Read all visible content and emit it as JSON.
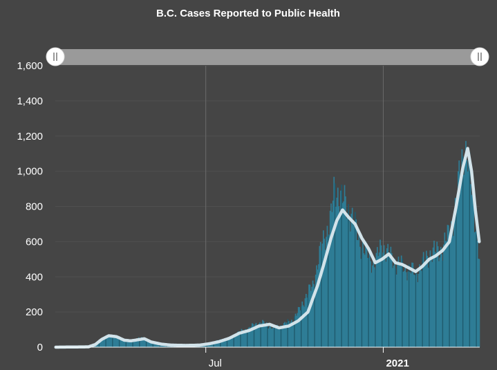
{
  "chart_data": {
    "type": "bar",
    "title": "B.C. Cases Reported to Public Health",
    "xlabel": "",
    "ylabel": "",
    "ylim": [
      0,
      1600
    ],
    "yticks": [
      0,
      200,
      400,
      600,
      800,
      1000,
      1200,
      1400,
      1600
    ],
    "ytick_labels": [
      "0",
      "200",
      "400",
      "600",
      "800",
      "1,000",
      "1,200",
      "1,400",
      "1,600"
    ],
    "x_range": [
      "2020-01-27",
      "2021-04-11"
    ],
    "xticks": [
      {
        "date": "2020-07-01",
        "label": "Jul",
        "bold": false
      },
      {
        "date": "2021-01-01",
        "label": "2021",
        "bold": true
      }
    ],
    "grid": true,
    "legend": "none",
    "navigator": {
      "start": "2020-01-27",
      "end": "2021-04-11"
    },
    "colors": {
      "bars": "#2e7d96",
      "bars_dark": "#1f5a6d",
      "moving_average": "#d2e3ea",
      "background": "#454545",
      "navigator": "#9a9a9a"
    },
    "series": [
      {
        "type": "bar",
        "points": [
          [
            "2020-01-27",
            0
          ],
          [
            "2020-02-10",
            1
          ],
          [
            "2020-02-24",
            2
          ],
          [
            "2020-03-05",
            10
          ],
          [
            "2020-03-12",
            30
          ],
          [
            "2020-03-17",
            55
          ],
          [
            "2020-03-22",
            70
          ],
          [
            "2020-03-27",
            62
          ],
          [
            "2020-04-03",
            45
          ],
          [
            "2020-04-10",
            35
          ],
          [
            "2020-04-18",
            40
          ],
          [
            "2020-04-25",
            55
          ],
          [
            "2020-04-30",
            45
          ],
          [
            "2020-05-07",
            25
          ],
          [
            "2020-05-15",
            15
          ],
          [
            "2020-05-25",
            10
          ],
          [
            "2020-06-05",
            10
          ],
          [
            "2020-06-20",
            12
          ],
          [
            "2020-07-05",
            25
          ],
          [
            "2020-07-15",
            40
          ],
          [
            "2020-07-25",
            45
          ],
          [
            "2020-08-01",
            80
          ],
          [
            "2020-08-10",
            95
          ],
          [
            "2020-08-20",
            125
          ],
          [
            "2020-08-28",
            140
          ],
          [
            "2020-09-05",
            120
          ],
          [
            "2020-09-12",
            110
          ],
          [
            "2020-09-20",
            130
          ],
          [
            "2020-09-28",
            150
          ],
          [
            "2020-10-05",
            200
          ],
          [
            "2020-10-12",
            280
          ],
          [
            "2020-10-20",
            350
          ],
          [
            "2020-10-26",
            500
          ],
          [
            "2020-11-01",
            620
          ],
          [
            "2020-11-08",
            740
          ],
          [
            "2020-11-12",
            900
          ],
          [
            "2020-11-18",
            860
          ],
          [
            "2020-11-23",
            800
          ],
          [
            "2020-11-29",
            760
          ],
          [
            "2020-12-06",
            620
          ],
          [
            "2020-12-12",
            560
          ],
          [
            "2020-12-18",
            500
          ],
          [
            "2020-12-24",
            480
          ],
          [
            "2020-12-31",
            580
          ],
          [
            "2021-01-07",
            520
          ],
          [
            "2021-01-14",
            480
          ],
          [
            "2021-01-21",
            460
          ],
          [
            "2021-01-28",
            440
          ],
          [
            "2021-02-04",
            420
          ],
          [
            "2021-02-11",
            470
          ],
          [
            "2021-02-18",
            530
          ],
          [
            "2021-02-25",
            540
          ],
          [
            "2021-03-04",
            560
          ],
          [
            "2021-03-11",
            650
          ],
          [
            "2021-03-18",
            800
          ],
          [
            "2021-03-22",
            1000
          ],
          [
            "2021-03-26",
            1150
          ],
          [
            "2021-03-30",
            1050
          ],
          [
            "2021-04-03",
            900
          ],
          [
            "2021-04-06",
            760
          ],
          [
            "2021-04-09",
            620
          ],
          [
            "2021-04-11",
            470
          ]
        ]
      },
      {
        "type": "line",
        "points": [
          [
            "2020-01-27",
            0
          ],
          [
            "2020-03-01",
            2
          ],
          [
            "2020-03-08",
            15
          ],
          [
            "2020-03-15",
            45
          ],
          [
            "2020-03-22",
            65
          ],
          [
            "2020-03-30",
            60
          ],
          [
            "2020-04-07",
            40
          ],
          [
            "2020-04-14",
            36
          ],
          [
            "2020-04-21",
            42
          ],
          [
            "2020-04-28",
            48
          ],
          [
            "2020-05-05",
            30
          ],
          [
            "2020-05-15",
            18
          ],
          [
            "2020-05-25",
            12
          ],
          [
            "2020-06-10",
            10
          ],
          [
            "2020-06-25",
            12
          ],
          [
            "2020-07-05",
            20
          ],
          [
            "2020-07-15",
            32
          ],
          [
            "2020-07-25",
            50
          ],
          [
            "2020-08-05",
            80
          ],
          [
            "2020-08-15",
            95
          ],
          [
            "2020-08-25",
            120
          ],
          [
            "2020-09-05",
            130
          ],
          [
            "2020-09-15",
            110
          ],
          [
            "2020-09-25",
            120
          ],
          [
            "2020-10-05",
            150
          ],
          [
            "2020-10-15",
            200
          ],
          [
            "2020-10-25",
            350
          ],
          [
            "2020-11-02",
            500
          ],
          [
            "2020-11-08",
            620
          ],
          [
            "2020-11-14",
            720
          ],
          [
            "2020-11-20",
            780
          ],
          [
            "2020-11-26",
            740
          ],
          [
            "2020-12-03",
            700
          ],
          [
            "2020-12-10",
            620
          ],
          [
            "2020-12-17",
            560
          ],
          [
            "2020-12-24",
            480
          ],
          [
            "2020-12-31",
            500
          ],
          [
            "2021-01-07",
            530
          ],
          [
            "2021-01-14",
            480
          ],
          [
            "2021-01-21",
            470
          ],
          [
            "2021-01-28",
            450
          ],
          [
            "2021-02-04",
            430
          ],
          [
            "2021-02-11",
            460
          ],
          [
            "2021-02-18",
            500
          ],
          [
            "2021-02-25",
            520
          ],
          [
            "2021-03-04",
            550
          ],
          [
            "2021-03-11",
            600
          ],
          [
            "2021-03-18",
            800
          ],
          [
            "2021-03-25",
            1020
          ],
          [
            "2021-03-30",
            1130
          ],
          [
            "2021-04-03",
            1000
          ],
          [
            "2021-04-07",
            780
          ],
          [
            "2021-04-11",
            600
          ]
        ]
      }
    ]
  }
}
